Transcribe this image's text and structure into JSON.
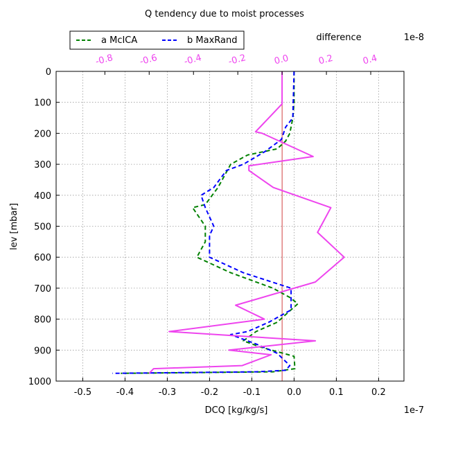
{
  "chart_data": {
    "type": "line",
    "title": "Q tendency due to moist processes",
    "xlabel": "DCQ [kg/kg/s]",
    "x_multiplier": "1e-7",
    "ylabel": "lev [mbar]",
    "xlim": [
      -5.63e-08,
      2.6e-08
    ],
    "xticks": [
      {
        "v": -5e-08,
        "label": "-0.5"
      },
      {
        "v": -4e-08,
        "label": "-0.4"
      },
      {
        "v": -3e-08,
        "label": "-0.3"
      },
      {
        "v": -2e-08,
        "label": "-0.2"
      },
      {
        "v": -1e-08,
        "label": "-0.1"
      },
      {
        "v": 0,
        "label": "0.0"
      },
      {
        "v": 1e-08,
        "label": "0.1"
      },
      {
        "v": 2e-08,
        "label": "0.2"
      }
    ],
    "ylim": [
      1000,
      0
    ],
    "y_inverted": true,
    "yticks": [
      0,
      100,
      200,
      300,
      400,
      500,
      600,
      700,
      800,
      900,
      1000
    ],
    "grid": true,
    "legend": {
      "location": "upper-left",
      "entries": [
        {
          "label": "a McICA",
          "color": "#008000",
          "style": "dashed"
        },
        {
          "label": "b MaxRand",
          "color": "#0000ff",
          "style": "dashed"
        }
      ]
    },
    "series": [
      {
        "name": "a McICA",
        "color": "#008000",
        "dash": "6 4",
        "axis": "bottom",
        "x": [
          0,
          0,
          -3e-10,
          -1e-09,
          -2e-09,
          -4e-09,
          -1.1e-08,
          -1.5e-08,
          -1.6e-08,
          -1.8e-08,
          -2.1e-08,
          -2.4e-08,
          -2.1e-08,
          -2.1e-08,
          -2.3e-08,
          -1.5e-08,
          -5e-09,
          -1e-09,
          9e-10,
          -4e-09,
          -9e-09,
          -1.2e-08,
          -8e-09,
          0,
          2e-10,
          -5e-09,
          -4.1e-08
        ],
        "y": [
          0,
          100,
          150,
          200,
          225,
          250,
          270,
          300,
          325,
          375,
          430,
          440,
          500,
          550,
          600,
          650,
          700,
          730,
          750,
          810,
          840,
          870,
          890,
          920,
          960,
          970,
          975
        ]
      },
      {
        "name": "b MaxRand",
        "color": "#0000ff",
        "dash": "6 4",
        "axis": "bottom",
        "x": [
          0,
          -3e-10,
          -2e-09,
          -3e-09,
          -7e-09,
          -1.2e-08,
          -1.6e-08,
          -1.9e-08,
          -2.2e-08,
          -2.1e-08,
          -1.9e-08,
          -2e-08,
          -2e-08,
          -1.2e-08,
          -3e-09,
          -7e-10,
          -7e-10,
          -6e-09,
          -1.1e-08,
          -1.5e-08,
          -9e-09,
          -4e-09,
          -1e-09,
          -2e-09,
          -9e-09,
          -4.3e-08
        ],
        "y": [
          0,
          150,
          180,
          220,
          260,
          300,
          320,
          375,
          400,
          440,
          500,
          530,
          600,
          650,
          690,
          700,
          770,
          810,
          840,
          850,
          880,
          910,
          950,
          965,
          970,
          975
        ]
      },
      {
        "name": "difference",
        "color": "#ee44ee",
        "dash": "",
        "axis": "top",
        "x": [
          0,
          0,
          -6e-10,
          -1.2e-09,
          -9e-10,
          1.4e-09,
          -1.5e-09,
          -1.5e-09,
          -4e-10,
          2.2e-09,
          1.6e-09,
          2.8e-09,
          1.5e-09,
          -2.1e-09,
          -8e-10,
          -5.1e-09,
          1.5e-09,
          -2.4e-09,
          -5e-10,
          -1.8e-09,
          -5.8e-09,
          -6e-09
        ],
        "y": [
          0,
          105,
          150,
          195,
          200,
          275,
          305,
          320,
          375,
          440,
          520,
          600,
          680,
          755,
          800,
          840,
          870,
          900,
          915,
          950,
          960,
          975
        ]
      }
    ],
    "top_axis": {
      "label": "difference",
      "multiplier": "1e-8",
      "color": "#ee44ee",
      "xlim": [
        -1.02e-08,
        5.5e-09
      ],
      "xticks": [
        {
          "v": -8e-09,
          "label": "-0.8"
        },
        {
          "v": -6e-09,
          "label": "-0.6"
        },
        {
          "v": -4e-09,
          "label": "-0.4"
        },
        {
          "v": -2e-09,
          "label": "-0.2"
        },
        {
          "v": 0,
          "label": "0.0"
        },
        {
          "v": 2e-09,
          "label": "0.2"
        },
        {
          "v": 4e-09,
          "label": "0.4"
        }
      ]
    },
    "reference_line": {
      "axis": "top",
      "x": 0,
      "color": "#d04040"
    }
  }
}
